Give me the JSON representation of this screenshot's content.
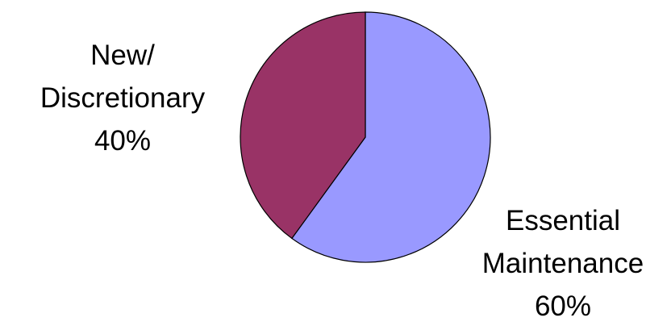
{
  "chart_data": {
    "type": "pie",
    "title": "",
    "start_angle_deg": 0,
    "direction": "clockwise",
    "slices": [
      {
        "name_lines": [
          "Essential",
          "Maintenance"
        ],
        "value": 60,
        "label": "60%",
        "color": "#9999FF"
      },
      {
        "name_lines": [
          "New/",
          "Discretionary"
        ],
        "value": 40,
        "label": "40%",
        "color": "#993366"
      }
    ],
    "legend": "none",
    "labels_outside": true
  }
}
